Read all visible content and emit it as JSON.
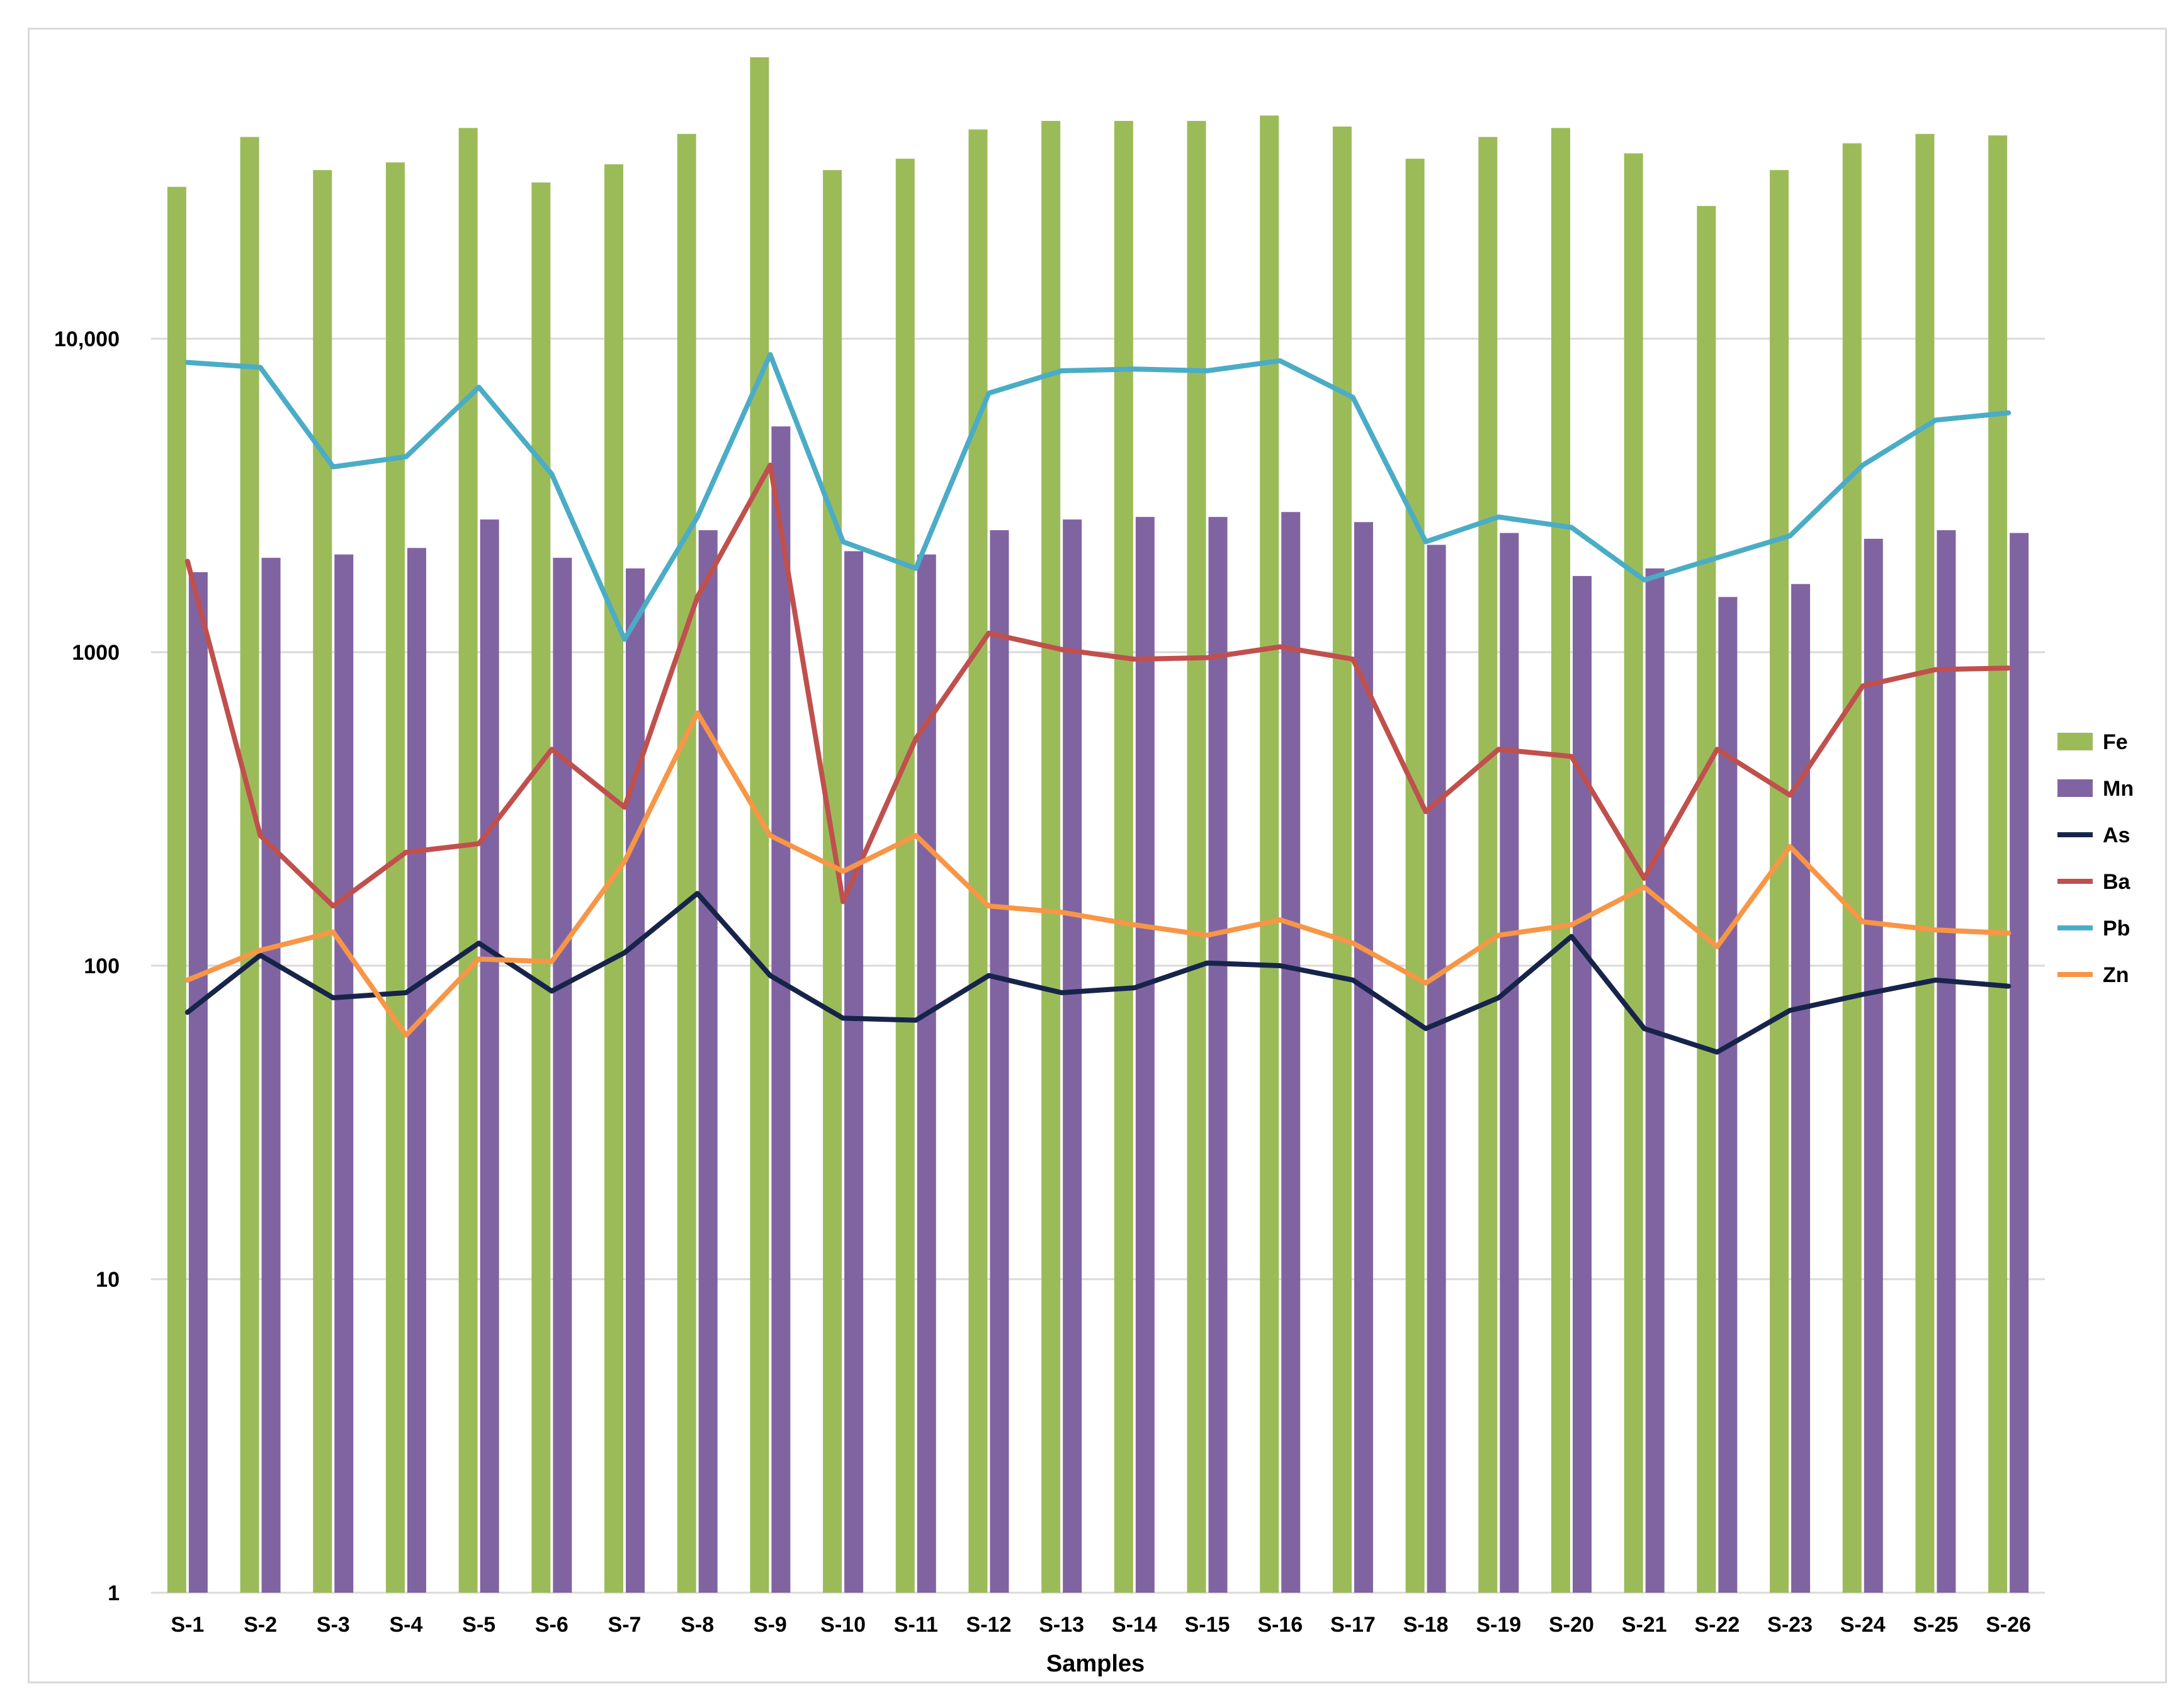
{
  "chart_data": {
    "type": "bar",
    "title": "",
    "xlabel": "Samples",
    "ylabel": "",
    "y_scale": "log",
    "ylim": [
      1,
      100000
    ],
    "yticks": [
      1,
      10,
      100,
      1000,
      10000
    ],
    "ytick_labels": [
      "1",
      "10",
      "100",
      "1000",
      "10,000"
    ],
    "grid": true,
    "legend_position": "right",
    "categories": [
      "S-1",
      "S-2",
      "S-3",
      "S-4",
      "S-5",
      "S-6",
      "S-7",
      "S-8",
      "S-9",
      "S-10",
      "S-11",
      "S-12",
      "S-13",
      "S-14",
      "S-15",
      "S-16",
      "S-17",
      "S-18",
      "S-19",
      "S-20",
      "S-21",
      "S-22",
      "S-23",
      "S-24",
      "S-25",
      "S-26"
    ],
    "series": [
      {
        "name": "Fe",
        "kind": "bar",
        "color": "#9bbb59",
        "values": [
          30500,
          44000,
          34500,
          36500,
          47000,
          31500,
          36000,
          45000,
          79000,
          34500,
          37500,
          46500,
          49500,
          49500,
          49500,
          51500,
          47500,
          37500,
          44000,
          47000,
          39000,
          26500,
          34500,
          42000,
          45000,
          44500
        ]
      },
      {
        "name": "Mn",
        "kind": "bar",
        "color": "#8064a2",
        "values": [
          1800,
          2000,
          2050,
          2150,
          2650,
          2000,
          1850,
          2450,
          5250,
          2100,
          2050,
          2450,
          2650,
          2700,
          2700,
          2800,
          2600,
          2200,
          2400,
          1750,
          1850,
          1500,
          1650,
          2300,
          2450,
          2400
        ]
      },
      {
        "name": "As",
        "kind": "line",
        "color": "#17244a",
        "values": [
          71,
          108,
          79,
          82,
          118,
          83,
          110,
          170,
          93,
          68,
          67,
          93,
          82,
          85,
          102,
          100,
          90,
          63,
          79,
          124,
          63,
          53,
          72,
          81,
          90,
          86
        ]
      },
      {
        "name": "Ba",
        "kind": "line",
        "color": "#c0504d",
        "values": [
          1950,
          260,
          155,
          230,
          245,
          490,
          320,
          1500,
          3950,
          160,
          530,
          1150,
          1020,
          950,
          960,
          1040,
          950,
          310,
          490,
          465,
          190,
          490,
          350,
          780,
          880,
          890
        ]
      },
      {
        "name": "Pb",
        "kind": "line",
        "color": "#4bacc6",
        "values": [
          8400,
          8100,
          3900,
          4200,
          7000,
          3700,
          1100,
          2700,
          8900,
          2250,
          1850,
          6700,
          7900,
          8000,
          7900,
          8500,
          6500,
          2250,
          2700,
          2500,
          1700,
          2000,
          2350,
          3950,
          5500,
          5800
        ]
      },
      {
        "name": "Zn",
        "kind": "line",
        "color": "#f79646",
        "values": [
          90,
          112,
          128,
          60,
          105,
          103,
          215,
          640,
          260,
          200,
          260,
          155,
          148,
          135,
          125,
          140,
          118,
          88,
          125,
          135,
          178,
          115,
          240,
          138,
          130,
          127
        ]
      }
    ]
  }
}
